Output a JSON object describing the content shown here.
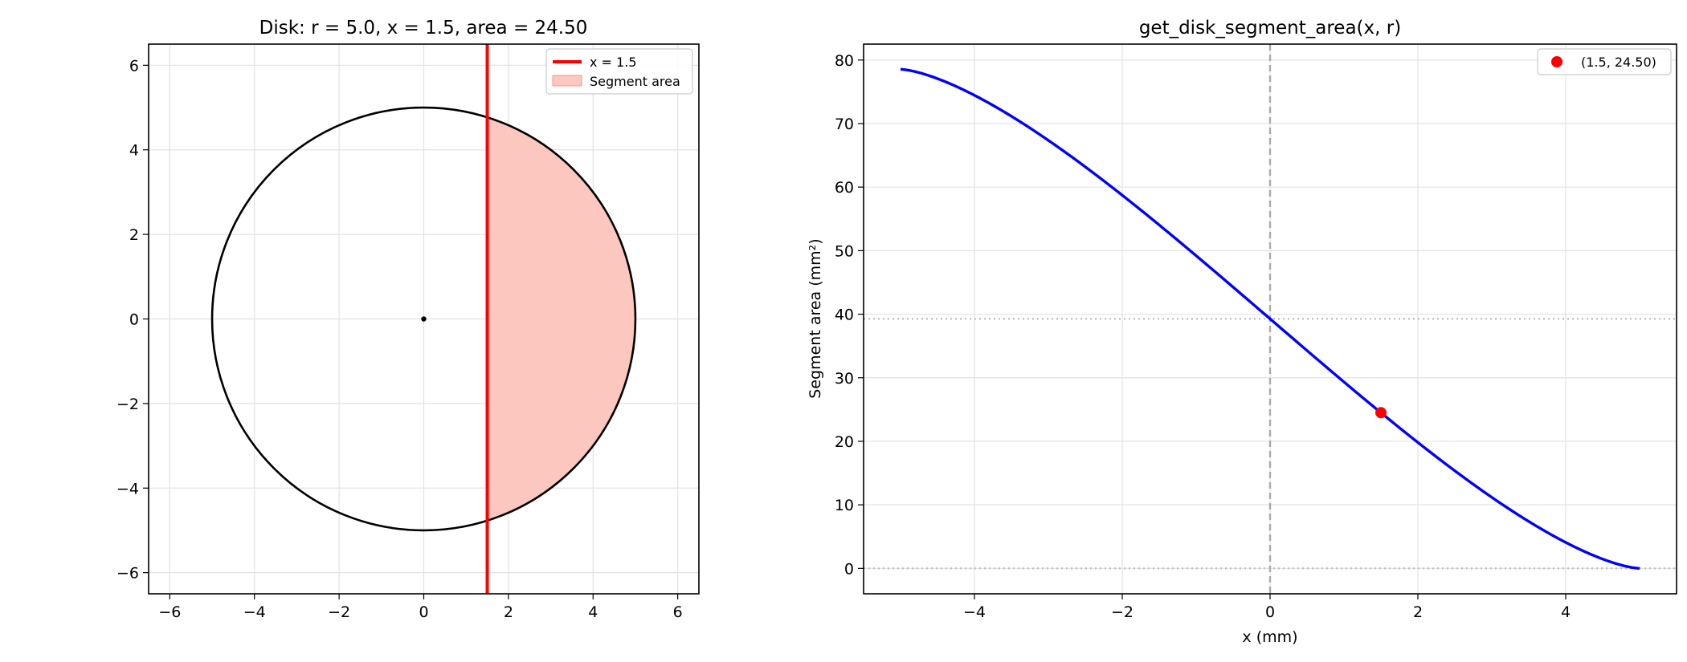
{
  "chart_data": [
    {
      "type": "line",
      "title": "Disk: r = 5.0, x = 1.5, area = 24.50",
      "xlabel": "",
      "ylabel": "",
      "xlim": [
        -6.5,
        6.5
      ],
      "ylim": [
        -6.5,
        6.5
      ],
      "xticks": [
        -6,
        -4,
        -2,
        0,
        2,
        4,
        6
      ],
      "yticks": [
        -6,
        -4,
        -2,
        0,
        2,
        4,
        6
      ],
      "xtick_labels": [
        "−6",
        "−4",
        "−2",
        "0",
        "2",
        "4",
        "6"
      ],
      "ytick_labels": [
        "−6",
        "−4",
        "−2",
        "0",
        "2",
        "4",
        "6"
      ],
      "grid": true,
      "legend_placement": "upper-right",
      "circle": {
        "center": [
          0,
          0
        ],
        "radius": 5.0,
        "color": "#000000"
      },
      "center_point": [
        0,
        0
      ],
      "cut_line": {
        "x": 1.5,
        "color": "#ff0000"
      },
      "segment_fill_color": "#fcc7bf",
      "legend": [
        {
          "label": "x = 1.5",
          "kind": "line",
          "color": "#ff0000"
        },
        {
          "label": "Segment area",
          "kind": "patch",
          "color": "#fcc7bf"
        }
      ]
    },
    {
      "type": "line",
      "title": "get_disk_segment_area(x, r)",
      "xlabel": "x (mm)",
      "ylabel": "Segment area (mm²)",
      "xlim": [
        -5.5,
        5.5
      ],
      "ylim": [
        -4,
        82.5
      ],
      "xticks": [
        -4,
        -2,
        0,
        2,
        4
      ],
      "yticks": [
        0,
        10,
        20,
        30,
        40,
        50,
        60,
        70,
        80
      ],
      "xtick_labels": [
        "−4",
        "−2",
        "0",
        "2",
        "4"
      ],
      "ytick_labels": [
        "0",
        "10",
        "20",
        "30",
        "40",
        "50",
        "60",
        "70",
        "80"
      ],
      "grid": true,
      "legend_placement": "upper-right",
      "radius": 5.0,
      "series": [
        {
          "color": "#0000ff",
          "x": [
            -5.0,
            -4.5,
            -4.0,
            -3.5,
            -3.0,
            -2.5,
            -2.0,
            -1.5,
            -1.0,
            -0.5,
            0.0,
            0.5,
            1.0,
            1.5,
            2.0,
            2.5,
            3.0,
            3.5,
            4.0,
            4.5,
            5.0
          ],
          "y": [
            78.54,
            77.85,
            76.59,
            73.96,
            70.63,
            66.72,
            62.34,
            57.6,
            52.58,
            47.34,
            39.27,
            34.28,
            29.32,
            24.5,
            19.87,
            15.48,
            11.36,
            7.6,
            4.41,
            1.53,
            0.0
          ]
        }
      ],
      "highlight_point": {
        "x": 1.5,
        "y": 24.5,
        "label": "(1.5, 24.50)",
        "color": "#ff0000"
      },
      "reference_lines": [
        {
          "orientation": "vertical",
          "value": 0,
          "style": "dashed"
        },
        {
          "orientation": "horizontal",
          "value": 39.27,
          "style": "dotted"
        },
        {
          "orientation": "horizontal",
          "value": 0,
          "style": "dotted"
        }
      ]
    }
  ]
}
